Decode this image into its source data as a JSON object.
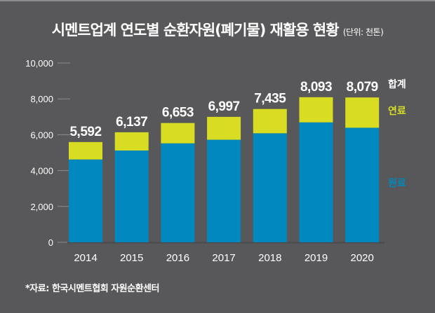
{
  "title": {
    "main": "시멘트업계 연도별 순환자원(폐기물) 재활용 현황",
    "unit": "(단위: 천톤)"
  },
  "source": "*자료: 한국시멘트협회 자원순환센터",
  "colors": {
    "background": "#58585a",
    "raw_material": "#0088bf",
    "fuel": "#d8dc22",
    "total_text": "#ffffff",
    "axis_tick": "#8c8c8e"
  },
  "chart_data": {
    "type": "bar",
    "stacked": true,
    "title": "시멘트업계 연도별 순환자원(폐기물) 재활용 현황",
    "subtitle": "(단위: 천톤)",
    "xlabel": "",
    "ylabel": "",
    "ylim": [
      0,
      10000
    ],
    "yticks": [
      0,
      2000,
      4000,
      6000,
      8000,
      10000
    ],
    "ytick_labels": [
      "0",
      "2,000",
      "4,000",
      "6,000",
      "8,000",
      "10,000"
    ],
    "grid": false,
    "categories": [
      "2014",
      "2015",
      "2016",
      "2017",
      "2018",
      "2019",
      "2020"
    ],
    "series": [
      {
        "name": "원료",
        "color": "#0088bf",
        "values": [
          4620,
          5120,
          5520,
          5720,
          6080,
          6690,
          6390
        ]
      },
      {
        "name": "연료",
        "color": "#d8dc22",
        "values": [
          972,
          1017,
          1133,
          1277,
          1355,
          1403,
          1689
        ]
      }
    ],
    "totals": [
      5592,
      6137,
      6653,
      6997,
      7435,
      8093,
      8079
    ],
    "total_labels": [
      "5,592",
      "6,137",
      "6,653",
      "6,997",
      "7,435",
      "8,093",
      "8,079"
    ],
    "legend": [
      {
        "label": "합계",
        "color": "#ffffff"
      },
      {
        "label": "연료",
        "color": "#d8dc22"
      },
      {
        "label": "원료",
        "color": "#0088bf"
      }
    ],
    "legend_position": "right"
  }
}
